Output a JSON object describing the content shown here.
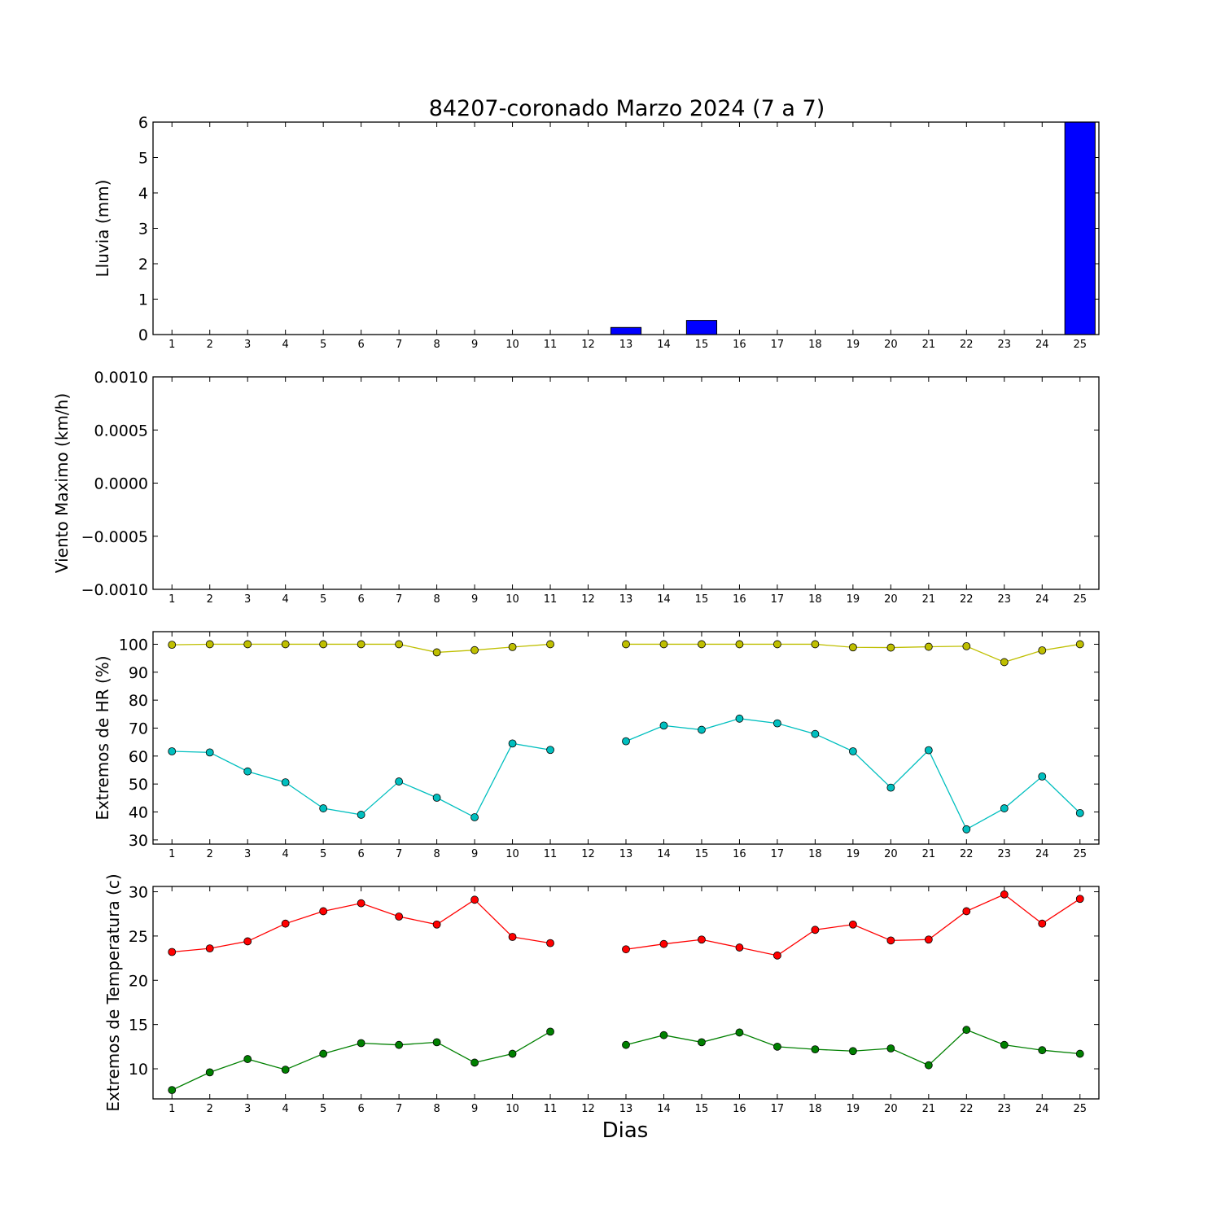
{
  "title": "84207-coronado Marzo 2024  (7 a 7)",
  "xlabel": "Dias",
  "chart_data": [
    {
      "id": "rain",
      "type": "bar",
      "ylabel": "Lluvia (mm)",
      "ylim": [
        0,
        6
      ],
      "yticks": [
        "0",
        "1",
        "2",
        "3",
        "4",
        "5",
        "6"
      ],
      "categories": [
        "1",
        "2",
        "3",
        "4",
        "5",
        "6",
        "7",
        "8",
        "9",
        "10",
        "11",
        "12",
        "13",
        "14",
        "15",
        "16",
        "17",
        "18",
        "19",
        "20",
        "21",
        "22",
        "23",
        "24",
        "25"
      ],
      "values": [
        0,
        0,
        0,
        0,
        0,
        0,
        0,
        0,
        0,
        0,
        0,
        null,
        0.2,
        0,
        0.4,
        0,
        0,
        0,
        0,
        0,
        0,
        0,
        0,
        0,
        6.0
      ],
      "color": "#0000ff"
    },
    {
      "id": "wind",
      "type": "line",
      "ylabel": "Viento Maximo (km/h)",
      "ylim": [
        -0.001,
        0.001
      ],
      "yticks": [
        "−0.0010",
        "−0.0005",
        "0.0000",
        "0.0005",
        "0.0010"
      ],
      "categories": [
        "1",
        "2",
        "3",
        "4",
        "5",
        "6",
        "7",
        "8",
        "9",
        "10",
        "11",
        "12",
        "13",
        "14",
        "15",
        "16",
        "17",
        "18",
        "19",
        "20",
        "21",
        "22",
        "23",
        "24",
        "25"
      ],
      "series": []
    },
    {
      "id": "humidity",
      "type": "line",
      "ylabel": "Extremos de HR (%)",
      "ylim": [
        28.5,
        104.5
      ],
      "yticks": [
        "30",
        "40",
        "50",
        "60",
        "70",
        "80",
        "90",
        "100"
      ],
      "categories": [
        "1",
        "2",
        "3",
        "4",
        "5",
        "6",
        "7",
        "8",
        "9",
        "10",
        "11",
        "12",
        "13",
        "14",
        "15",
        "16",
        "17",
        "18",
        "19",
        "20",
        "21",
        "22",
        "23",
        "24",
        "25"
      ],
      "series": [
        {
          "color": "#bfbf00",
          "values": [
            99.8,
            100,
            100,
            100,
            100,
            100,
            100,
            97.1,
            97.9,
            99,
            100,
            null,
            100,
            100,
            100,
            100,
            100,
            100,
            98.9,
            98.8,
            99.1,
            99.3,
            93.6,
            97.8,
            100
          ]
        },
        {
          "color": "#00bfbf",
          "values": [
            61.7,
            61.3,
            54.5,
            50.6,
            41.3,
            39.0,
            50.9,
            45.1,
            38.1,
            64.5,
            62.2,
            null,
            65.3,
            70.9,
            69.4,
            73.4,
            71.7,
            67.9,
            61.7,
            48.7,
            62.1,
            33.8,
            41.3,
            52.7,
            39.6
          ]
        }
      ]
    },
    {
      "id": "temperature",
      "type": "line",
      "ylabel": "Extremos de Temperatura (c)",
      "ylim": [
        6.6,
        30.6
      ],
      "yticks": [
        "10",
        "15",
        "20",
        "25",
        "30"
      ],
      "categories": [
        "1",
        "2",
        "3",
        "4",
        "5",
        "6",
        "7",
        "8",
        "9",
        "10",
        "11",
        "12",
        "13",
        "14",
        "15",
        "16",
        "17",
        "18",
        "19",
        "20",
        "21",
        "22",
        "23",
        "24",
        "25"
      ],
      "series": [
        {
          "color": "#ff0000",
          "values": [
            23.2,
            23.6,
            24.4,
            26.4,
            27.8,
            28.7,
            27.2,
            26.3,
            29.1,
            24.9,
            24.2,
            null,
            23.5,
            24.1,
            24.6,
            23.7,
            22.8,
            25.7,
            26.3,
            24.5,
            24.6,
            27.8,
            29.7,
            26.4,
            29.2
          ]
        },
        {
          "color": "#008000",
          "values": [
            7.6,
            9.6,
            11.1,
            9.9,
            11.7,
            12.9,
            12.7,
            13.0,
            10.7,
            11.7,
            14.2,
            null,
            12.7,
            13.8,
            13.0,
            14.1,
            12.5,
            12.2,
            12.0,
            12.3,
            10.4,
            14.4,
            12.7,
            12.1,
            11.7
          ]
        }
      ]
    }
  ]
}
